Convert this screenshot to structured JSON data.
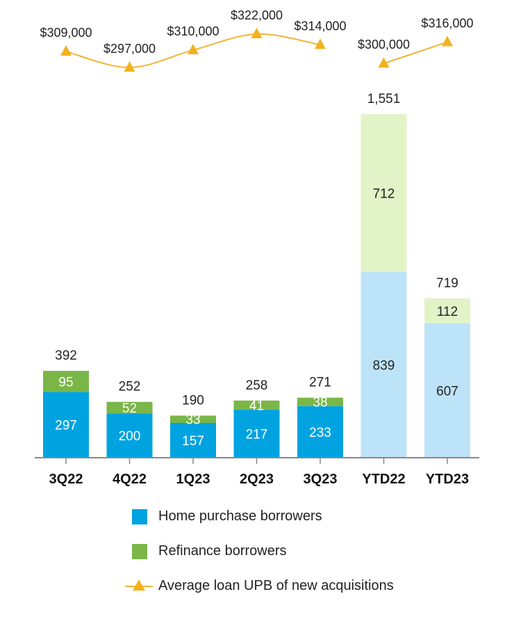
{
  "chart_data": {
    "type": "bar",
    "stacked": true,
    "categories": [
      "3Q22",
      "4Q22",
      "1Q23",
      "2Q23",
      "3Q23",
      "YTD22",
      "YTD23"
    ],
    "series": [
      {
        "name": "Home purchase borrowers",
        "values": [
          297,
          200,
          157,
          217,
          233,
          839,
          607
        ]
      },
      {
        "name": "Refinance borrowers",
        "values": [
          95,
          52,
          33,
          41,
          38,
          712,
          112
        ]
      }
    ],
    "totals": [
      392,
      252,
      190,
      258,
      271,
      1551,
      719
    ],
    "total_labels": [
      "392",
      "252",
      "190",
      "258",
      "271",
      "1,551",
      "719"
    ],
    "line_series": {
      "name": "Average loan UPB of new acquisitions",
      "values": [
        309000,
        297000,
        310000,
        322000,
        314000,
        300000,
        316000
      ],
      "labels": [
        "$309,000",
        "$297,000",
        "$310,000",
        "$322,000",
        "$314,000",
        "$300,000",
        "$316,000"
      ]
    },
    "ylim": [
      0,
      1600
    ],
    "grid": false,
    "legend_position": "bottom",
    "colors": {
      "purchase": "#00a3e0",
      "refinance": "#7ab648",
      "purchase_ytd": "#bde3f9",
      "refinance_ytd": "#e2f3c7",
      "line": "#f1b434",
      "marker": "#f2b21c",
      "axis": "#888888"
    }
  }
}
